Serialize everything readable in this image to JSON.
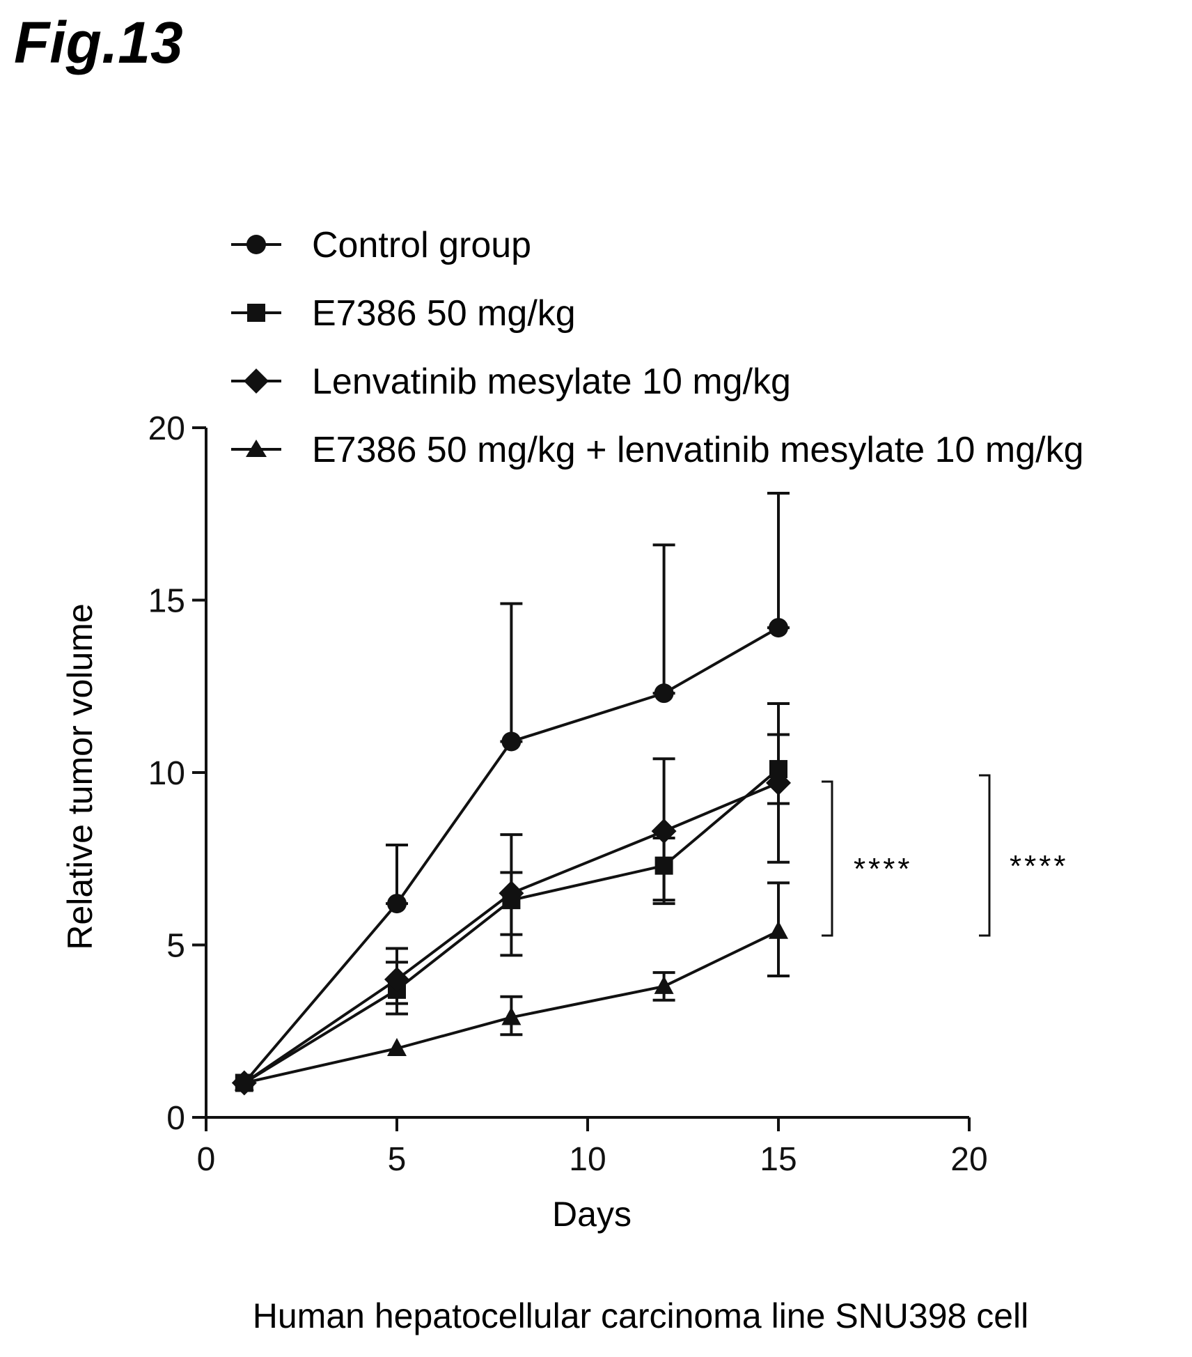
{
  "figure": {
    "label": "Fig.13",
    "caption": "Human hepatocellular carcinoma line SNU398 cell"
  },
  "chart_data": {
    "type": "line",
    "title": "",
    "xlabel": "Days",
    "ylabel": "Relative tumor volume",
    "xlim": [
      0,
      20
    ],
    "ylim": [
      0,
      20
    ],
    "xticks": [
      0,
      5,
      10,
      15,
      20
    ],
    "yticks": [
      0,
      5,
      10,
      15,
      20
    ],
    "grid": false,
    "legend_position": "top",
    "colors": {
      "ink": "#111111",
      "background": "#ffffff"
    },
    "series": [
      {
        "name": "Control group",
        "marker": "circle",
        "x": [
          1,
          5,
          8,
          12,
          15
        ],
        "y": [
          1.0,
          6.2,
          10.9,
          12.3,
          14.2
        ],
        "err_upper": [
          1.0,
          7.9,
          14.9,
          16.6,
          18.1
        ],
        "err_lower": [
          1.0,
          6.2,
          10.9,
          12.3,
          14.2
        ]
      },
      {
        "name": "E7386 50 mg/kg",
        "marker": "square",
        "x": [
          1,
          5,
          8,
          12,
          15
        ],
        "y": [
          1.0,
          3.7,
          6.3,
          7.3,
          10.1
        ],
        "err_upper": [
          1.0,
          4.5,
          7.1,
          8.1,
          12.0
        ],
        "err_lower": [
          1.0,
          3.0,
          5.3,
          6.3,
          9.1
        ]
      },
      {
        "name": "Lenvatinib mesylate 10 mg/kg",
        "marker": "diamond",
        "x": [
          1,
          5,
          8,
          12,
          15
        ],
        "y": [
          1.0,
          4.0,
          6.5,
          8.3,
          9.7
        ],
        "err_upper": [
          1.0,
          4.9,
          8.2,
          10.4,
          11.1
        ],
        "err_lower": [
          1.0,
          3.3,
          4.7,
          6.2,
          7.4
        ]
      },
      {
        "name": "E7386 50 mg/kg + lenvatinib mesylate 10 mg/kg",
        "marker": "triangle",
        "x": [
          1,
          5,
          8,
          12,
          15
        ],
        "y": [
          1.0,
          2.0,
          2.9,
          3.8,
          5.4
        ],
        "err_upper": [
          1.0,
          2.0,
          3.5,
          4.2,
          6.8
        ],
        "err_lower": [
          1.0,
          2.0,
          2.4,
          3.4,
          4.1
        ]
      }
    ],
    "significance": [
      {
        "label": "****",
        "y_top": 9.75,
        "y_bottom": 5.3
      },
      {
        "label": "****",
        "y_top": 9.95,
        "y_bottom": 5.3
      }
    ]
  }
}
